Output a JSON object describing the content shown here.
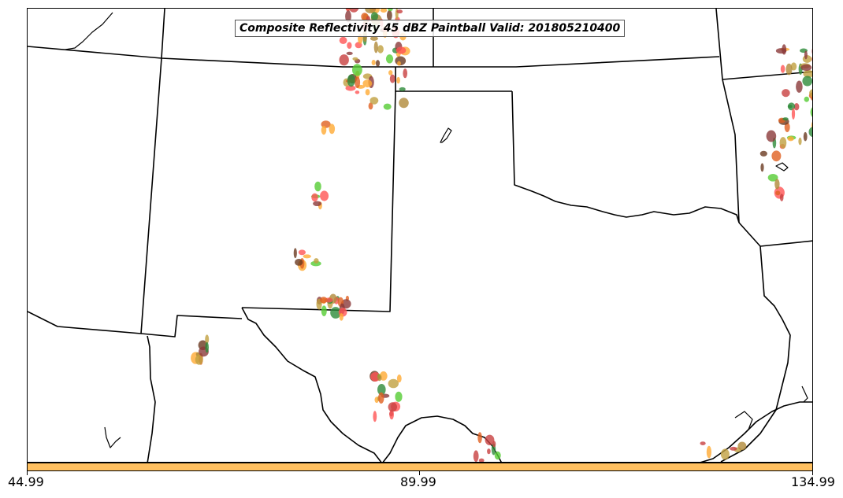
{
  "title": "Composite Reflectivity 45 dBZ Paintball Valid: 201805210400",
  "colorbar": {
    "color": "#ffc060",
    "tick_labels": [
      "44.99",
      "89.99",
      "134.99"
    ]
  },
  "colors": {
    "boundary": "#000000",
    "paintball_palette": [
      "#ff5555",
      "#c84040",
      "#2e8b3a",
      "#55cc33",
      "#ffaa33",
      "#e06020",
      "#b08a3a",
      "#8b3a3a",
      "#6a3a20",
      "#c0a040"
    ]
  }
}
